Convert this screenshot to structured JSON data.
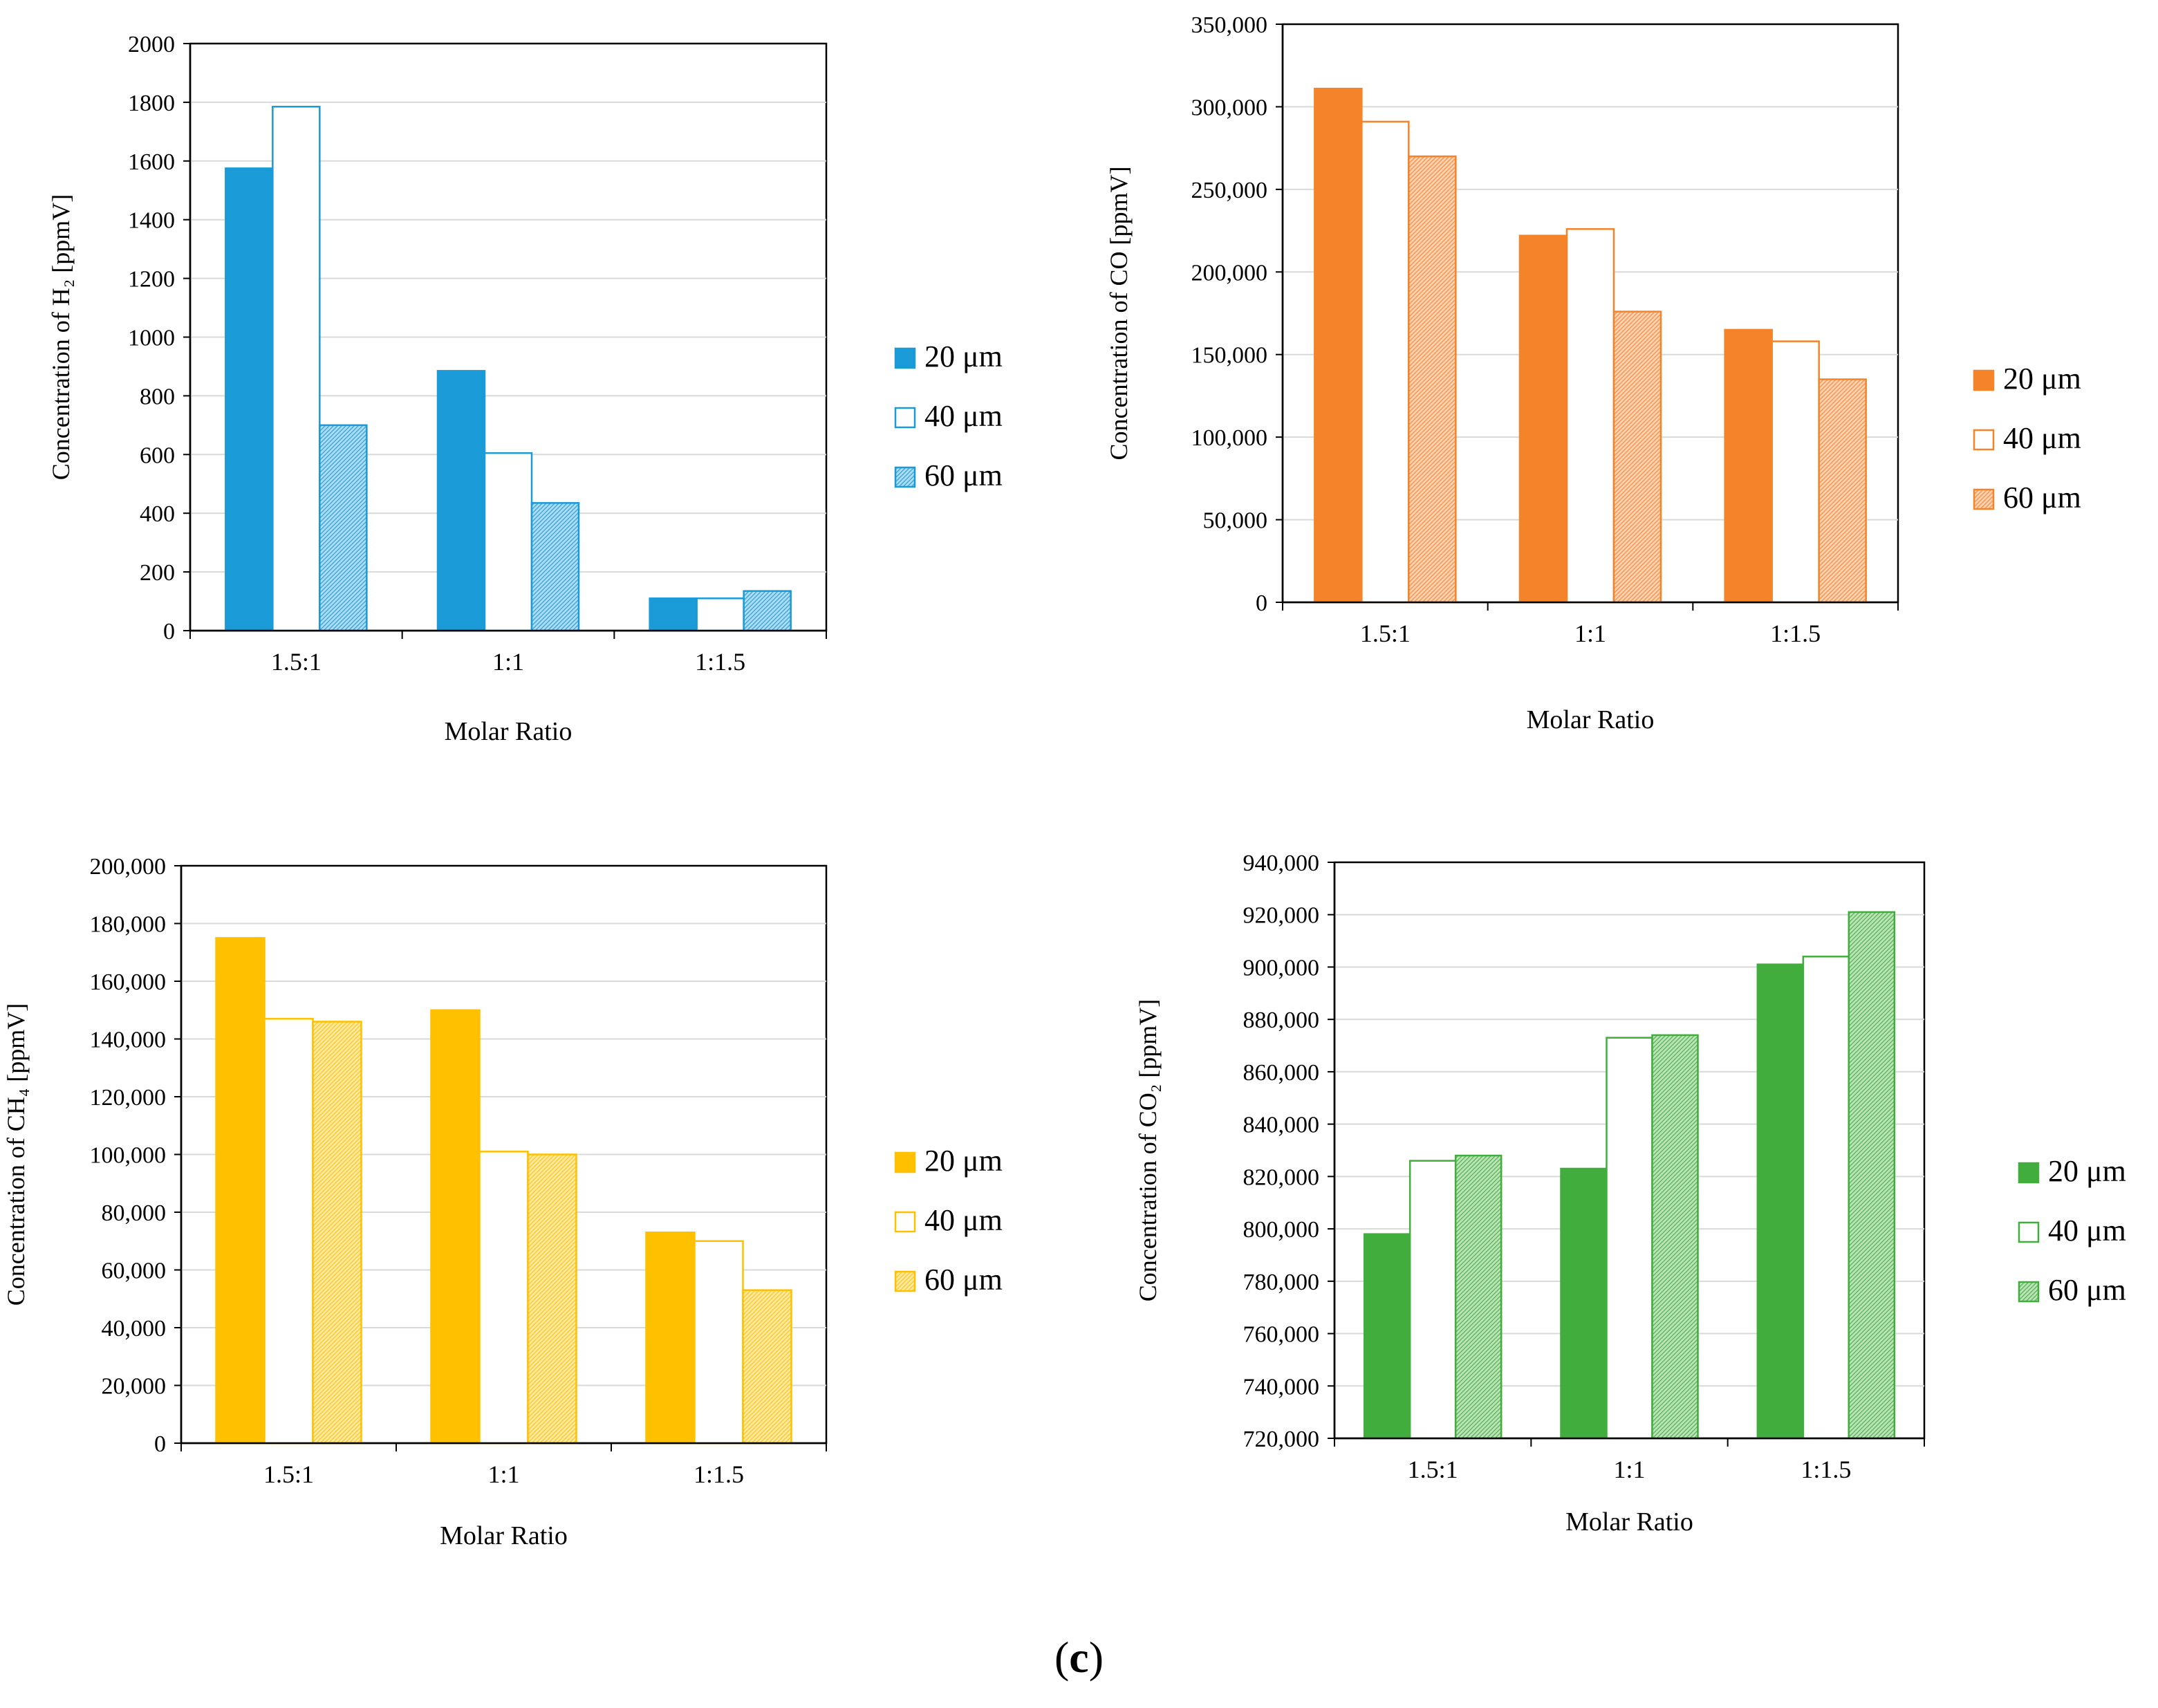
{
  "caption": {
    "open": "(",
    "letter": "c",
    "close": ")"
  },
  "chart_data": [
    {
      "id": "h2",
      "type": "bar",
      "title": "",
      "xlabel": "Molar Ratio",
      "ylabel": "Concentration of H₂ [ppmV]",
      "ylim": [
        0,
        2000
      ],
      "yticks": [
        0,
        200,
        400,
        600,
        800,
        1000,
        1200,
        1400,
        1600,
        1800,
        2000
      ],
      "ytick_labels": [
        "0",
        "200",
        "400",
        "600",
        "800",
        "1000",
        "1200",
        "1400",
        "1600",
        "1800",
        "2000"
      ],
      "grid": true,
      "legend_position": "right",
      "categories": [
        "1.5:1",
        "1:1",
        "1:1.5"
      ],
      "color": "#1a9ad6",
      "series": [
        {
          "name": "20 μm",
          "values": [
            1575,
            885,
            110
          ],
          "style": "solid"
        },
        {
          "name": "40 μm",
          "values": [
            1785,
            605,
            110
          ],
          "style": "outline"
        },
        {
          "name": "60 μm",
          "values": [
            700,
            435,
            135
          ],
          "style": "hatched"
        }
      ]
    },
    {
      "id": "co",
      "type": "bar",
      "title": "",
      "xlabel": "Molar Ratio",
      "ylabel": "Concentration of CO [ppmV]",
      "ylim": [
        0,
        350000
      ],
      "yticks": [
        0,
        50000,
        100000,
        150000,
        200000,
        250000,
        300000,
        350000
      ],
      "ytick_labels": [
        "0",
        "50,000",
        "100,000",
        "150,000",
        "200,000",
        "250,000",
        "300,000",
        "350,000"
      ],
      "grid": true,
      "legend_position": "right",
      "categories": [
        "1.5:1",
        "1:1",
        "1:1.5"
      ],
      "color": "#f5832a",
      "series": [
        {
          "name": "20 μm",
          "values": [
            311000,
            222000,
            165000
          ],
          "style": "solid"
        },
        {
          "name": "40 μm",
          "values": [
            291000,
            226000,
            158000
          ],
          "style": "outline"
        },
        {
          "name": "60 μm",
          "values": [
            270000,
            176000,
            135000
          ],
          "style": "hatched"
        }
      ]
    },
    {
      "id": "ch4",
      "type": "bar",
      "title": "",
      "xlabel": "Molar Ratio",
      "ylabel": "Concentration of CH₄ [ppmV]",
      "ylim": [
        0,
        200000
      ],
      "yticks": [
        0,
        20000,
        40000,
        60000,
        80000,
        100000,
        120000,
        140000,
        160000,
        180000,
        200000
      ],
      "ytick_labels": [
        "0",
        "20,000",
        "40,000",
        "60,000",
        "80,000",
        "100,000",
        "120,000",
        "140,000",
        "160,000",
        "180,000",
        "200,000"
      ],
      "grid": true,
      "legend_position": "right",
      "categories": [
        "1.5:1",
        "1:1",
        "1:1.5"
      ],
      "color": "#ffc000",
      "series": [
        {
          "name": "20 μm",
          "values": [
            175000,
            150000,
            73000
          ],
          "style": "solid"
        },
        {
          "name": "40 μm",
          "values": [
            147000,
            101000,
            70000
          ],
          "style": "outline"
        },
        {
          "name": "60 μm",
          "values": [
            146000,
            100000,
            53000
          ],
          "style": "hatched"
        }
      ]
    },
    {
      "id": "co2",
      "type": "bar",
      "title": "",
      "xlabel": "Molar Ratio",
      "ylabel": "Concentration of CO₂ [ppmV]",
      "ylim": [
        720000,
        940000
      ],
      "yticks": [
        720000,
        740000,
        760000,
        780000,
        800000,
        820000,
        840000,
        860000,
        880000,
        900000,
        920000,
        940000
      ],
      "ytick_labels": [
        "720,000",
        "740,000",
        "760,000",
        "780,000",
        "800,000",
        "820,000",
        "840,000",
        "860,000",
        "880,000",
        "900,000",
        "920,000",
        "940,000"
      ],
      "grid": true,
      "legend_position": "right",
      "categories": [
        "1.5:1",
        "1:1",
        "1:1.5"
      ],
      "color": "#41ad3c",
      "series": [
        {
          "name": "20 μm",
          "values": [
            798000,
            823000,
            901000
          ],
          "style": "solid"
        },
        {
          "name": "40 μm",
          "values": [
            826000,
            873000,
            904000
          ],
          "style": "outline"
        },
        {
          "name": "60 μm",
          "values": [
            828000,
            874000,
            921000
          ],
          "style": "hatched"
        }
      ]
    }
  ]
}
